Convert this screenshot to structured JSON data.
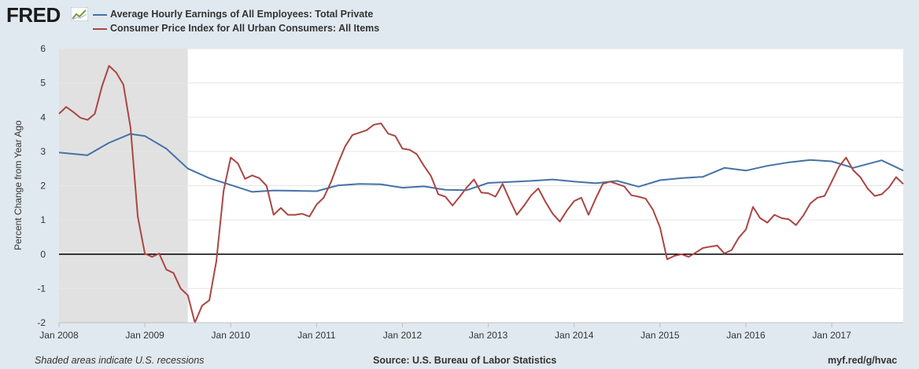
{
  "logo": {
    "text": "FRED"
  },
  "chart_data": {
    "type": "line",
    "ylabel": "Percent Change from Year Ago",
    "ylim": [
      -2,
      6
    ],
    "yticks": [
      -2,
      -1,
      0,
      1,
      2,
      3,
      4,
      5,
      6
    ],
    "xlim": [
      2008.0,
      2017.833
    ],
    "xticks": [
      {
        "v": 2008,
        "label": "Jan 2008"
      },
      {
        "v": 2009,
        "label": "Jan 2009"
      },
      {
        "v": 2010,
        "label": "Jan 2010"
      },
      {
        "v": 2011,
        "label": "Jan 2011"
      },
      {
        "v": 2012,
        "label": "Jan 2012"
      },
      {
        "v": 2013,
        "label": "Jan 2013"
      },
      {
        "v": 2014,
        "label": "Jan 2014"
      },
      {
        "v": 2015,
        "label": "Jan 2015"
      },
      {
        "v": 2016,
        "label": "Jan 2016"
      },
      {
        "v": 2017,
        "label": "Jan 2017"
      }
    ],
    "recession": [
      2008.0,
      2009.5
    ],
    "series": [
      {
        "name": "Average Hourly Earnings of All Employees: Total Private",
        "color": "#4572a7",
        "points": [
          [
            2008.0,
            2.97
          ],
          [
            2008.33,
            2.89
          ],
          [
            2008.58,
            3.25
          ],
          [
            2008.83,
            3.51
          ],
          [
            2009.0,
            3.45
          ],
          [
            2009.25,
            3.08
          ],
          [
            2009.5,
            2.5
          ],
          [
            2009.75,
            2.22
          ],
          [
            2010.0,
            2.02
          ],
          [
            2010.25,
            1.82
          ],
          [
            2010.5,
            1.86
          ],
          [
            2010.75,
            1.85
          ],
          [
            2011.0,
            1.84
          ],
          [
            2011.25,
            2.01
          ],
          [
            2011.5,
            2.05
          ],
          [
            2011.75,
            2.04
          ],
          [
            2012.0,
            1.94
          ],
          [
            2012.25,
            1.98
          ],
          [
            2012.5,
            1.88
          ],
          [
            2012.75,
            1.87
          ],
          [
            2013.0,
            2.08
          ],
          [
            2013.25,
            2.11
          ],
          [
            2013.5,
            2.14
          ],
          [
            2013.75,
            2.18
          ],
          [
            2014.0,
            2.12
          ],
          [
            2014.25,
            2.07
          ],
          [
            2014.5,
            2.14
          ],
          [
            2014.75,
            1.97
          ],
          [
            2015.0,
            2.16
          ],
          [
            2015.25,
            2.22
          ],
          [
            2015.5,
            2.26
          ],
          [
            2015.75,
            2.52
          ],
          [
            2016.0,
            2.44
          ],
          [
            2016.25,
            2.58
          ],
          [
            2016.5,
            2.68
          ],
          [
            2016.75,
            2.75
          ],
          [
            2017.0,
            2.71
          ],
          [
            2017.25,
            2.52
          ],
          [
            2017.58,
            2.74
          ],
          [
            2017.833,
            2.44
          ]
        ]
      },
      {
        "name": "Consumer Price Index for All Urban Consumers: All Items",
        "color": "#aa4643",
        "points": [
          [
            2008.0,
            4.1
          ],
          [
            2008.083,
            4.3
          ],
          [
            2008.167,
            4.15
          ],
          [
            2008.25,
            3.98
          ],
          [
            2008.333,
            3.92
          ],
          [
            2008.417,
            4.1
          ],
          [
            2008.5,
            4.9
          ],
          [
            2008.583,
            5.5
          ],
          [
            2008.667,
            5.3
          ],
          [
            2008.75,
            4.95
          ],
          [
            2008.833,
            3.7
          ],
          [
            2008.917,
            1.1
          ],
          [
            2009.0,
            0.02
          ],
          [
            2009.083,
            -0.08
          ],
          [
            2009.167,
            0.02
          ],
          [
            2009.25,
            -0.45
          ],
          [
            2009.333,
            -0.55
          ],
          [
            2009.417,
            -1.0
          ],
          [
            2009.5,
            -1.2
          ],
          [
            2009.583,
            -2.0
          ],
          [
            2009.667,
            -1.5
          ],
          [
            2009.75,
            -1.35
          ],
          [
            2009.833,
            -0.2
          ],
          [
            2009.917,
            1.85
          ],
          [
            2010.0,
            2.82
          ],
          [
            2010.083,
            2.65
          ],
          [
            2010.167,
            2.2
          ],
          [
            2010.25,
            2.3
          ],
          [
            2010.333,
            2.22
          ],
          [
            2010.417,
            2.0
          ],
          [
            2010.5,
            1.15
          ],
          [
            2010.583,
            1.35
          ],
          [
            2010.667,
            1.15
          ],
          [
            2010.75,
            1.15
          ],
          [
            2010.833,
            1.18
          ],
          [
            2010.917,
            1.1
          ],
          [
            2011.0,
            1.45
          ],
          [
            2011.083,
            1.65
          ],
          [
            2011.167,
            2.1
          ],
          [
            2011.25,
            2.65
          ],
          [
            2011.333,
            3.15
          ],
          [
            2011.417,
            3.48
          ],
          [
            2011.5,
            3.55
          ],
          [
            2011.583,
            3.62
          ],
          [
            2011.667,
            3.78
          ],
          [
            2011.75,
            3.82
          ],
          [
            2011.833,
            3.52
          ],
          [
            2011.917,
            3.45
          ],
          [
            2012.0,
            3.08
          ],
          [
            2012.083,
            3.05
          ],
          [
            2012.167,
            2.92
          ],
          [
            2012.25,
            2.58
          ],
          [
            2012.333,
            2.28
          ],
          [
            2012.417,
            1.75
          ],
          [
            2012.5,
            1.68
          ],
          [
            2012.583,
            1.42
          ],
          [
            2012.667,
            1.68
          ],
          [
            2012.75,
            1.95
          ],
          [
            2012.833,
            2.18
          ],
          [
            2012.917,
            1.8
          ],
          [
            2013.0,
            1.78
          ],
          [
            2013.083,
            1.68
          ],
          [
            2013.167,
            2.05
          ],
          [
            2013.25,
            1.58
          ],
          [
            2013.333,
            1.15
          ],
          [
            2013.417,
            1.42
          ],
          [
            2013.5,
            1.72
          ],
          [
            2013.583,
            1.92
          ],
          [
            2013.667,
            1.52
          ],
          [
            2013.75,
            1.18
          ],
          [
            2013.833,
            0.95
          ],
          [
            2013.917,
            1.28
          ],
          [
            2014.0,
            1.55
          ],
          [
            2014.083,
            1.65
          ],
          [
            2014.167,
            1.15
          ],
          [
            2014.25,
            1.62
          ],
          [
            2014.333,
            2.05
          ],
          [
            2014.417,
            2.12
          ],
          [
            2014.5,
            2.05
          ],
          [
            2014.583,
            1.98
          ],
          [
            2014.667,
            1.72
          ],
          [
            2014.75,
            1.68
          ],
          [
            2014.833,
            1.62
          ],
          [
            2014.917,
            1.3
          ],
          [
            2015.0,
            0.78
          ],
          [
            2015.083,
            -0.15
          ],
          [
            2015.167,
            -0.05
          ],
          [
            2015.25,
            0.0
          ],
          [
            2015.333,
            -0.08
          ],
          [
            2015.417,
            0.05
          ],
          [
            2015.5,
            0.18
          ],
          [
            2015.583,
            0.22
          ],
          [
            2015.667,
            0.25
          ],
          [
            2015.75,
            0.02
          ],
          [
            2015.833,
            0.12
          ],
          [
            2015.917,
            0.48
          ],
          [
            2016.0,
            0.72
          ],
          [
            2016.083,
            1.38
          ],
          [
            2016.167,
            1.05
          ],
          [
            2016.25,
            0.92
          ],
          [
            2016.333,
            1.15
          ],
          [
            2016.417,
            1.05
          ],
          [
            2016.5,
            1.02
          ],
          [
            2016.583,
            0.85
          ],
          [
            2016.667,
            1.12
          ],
          [
            2016.75,
            1.48
          ],
          [
            2016.833,
            1.65
          ],
          [
            2016.917,
            1.7
          ],
          [
            2017.0,
            2.12
          ],
          [
            2017.083,
            2.55
          ],
          [
            2017.167,
            2.82
          ],
          [
            2017.25,
            2.45
          ],
          [
            2017.333,
            2.25
          ],
          [
            2017.417,
            1.92
          ],
          [
            2017.5,
            1.7
          ],
          [
            2017.583,
            1.75
          ],
          [
            2017.667,
            1.95
          ],
          [
            2017.75,
            2.25
          ],
          [
            2017.833,
            2.05
          ]
        ]
      }
    ]
  },
  "footer": {
    "recession_note": "Shaded areas indicate U.S. recessions",
    "source": "Source: U.S. Bureau of Labor Statistics",
    "url": "myf.red/g/hvac"
  }
}
